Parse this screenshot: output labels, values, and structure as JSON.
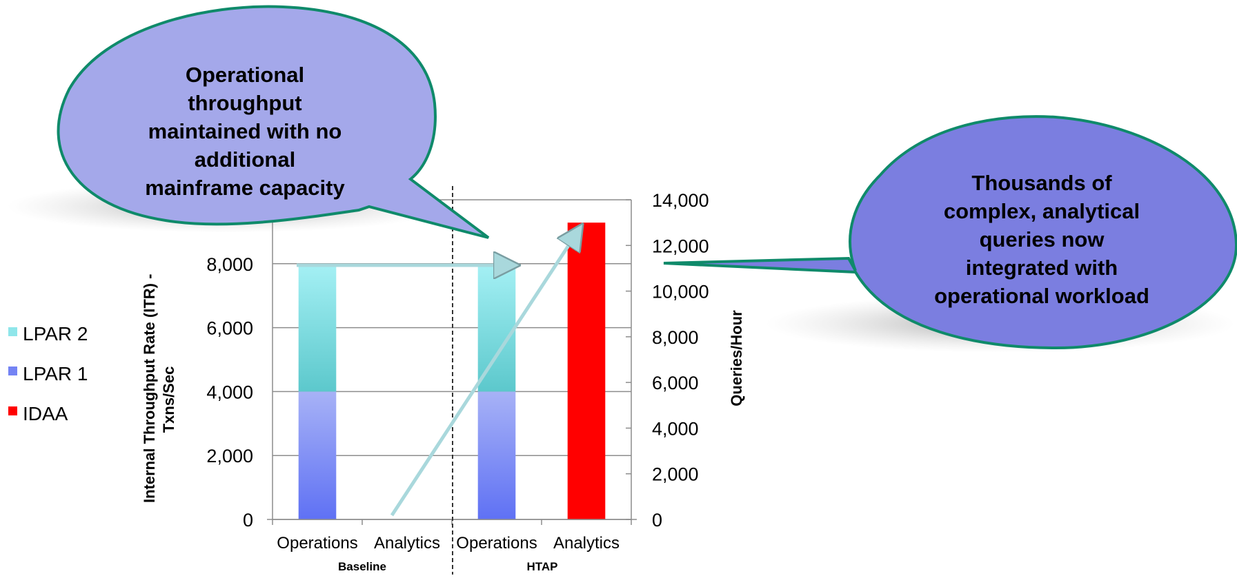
{
  "chart_data": {
    "type": "bar",
    "stacked": true,
    "groups": [
      "Baseline",
      "HTAP"
    ],
    "categories": [
      "Operations",
      "Analytics",
      "Operations",
      "Analytics"
    ],
    "series": [
      {
        "name": "LPAR 1",
        "axis": "left",
        "values": [
          4000,
          0,
          4000,
          0
        ],
        "color": "#7483f4"
      },
      {
        "name": "LPAR 2",
        "axis": "left",
        "values": [
          3950,
          0,
          3950,
          0
        ],
        "color": "#8fe6ea"
      },
      {
        "name": "IDAA",
        "axis": "right",
        "values": [
          0,
          0,
          0,
          13000
        ],
        "color": "#ff0000"
      }
    ],
    "y_left": {
      "label_line1": "Internal Throughput Rate (ITR) -",
      "label_line2": "Txns/Sec",
      "range": [
        0,
        10000
      ],
      "ticks": [
        "0",
        "2,000",
        "4,000",
        "6,000",
        "8,000"
      ]
    },
    "y_right": {
      "label": "Queries/Hour",
      "range": [
        0,
        14000
      ],
      "ticks": [
        "0",
        "2,000",
        "4,000",
        "6,000",
        "8,000",
        "10,000",
        "12,000",
        "14,000"
      ]
    },
    "grid": true,
    "legend_position": "left"
  },
  "callouts": {
    "left": [
      "Operational",
      "throughput",
      "maintained with no",
      "additional",
      "mainframe capacity"
    ],
    "right": [
      "Thousands of",
      "complex, analytical",
      "queries now",
      "integrated with",
      "operational workload"
    ]
  },
  "colors": {
    "callout_left_fill": "#a4a8ea",
    "callout_right_fill": "#7b7ee0",
    "callout_border": "#0f8a6a",
    "arrow": "#a9d8dc"
  }
}
